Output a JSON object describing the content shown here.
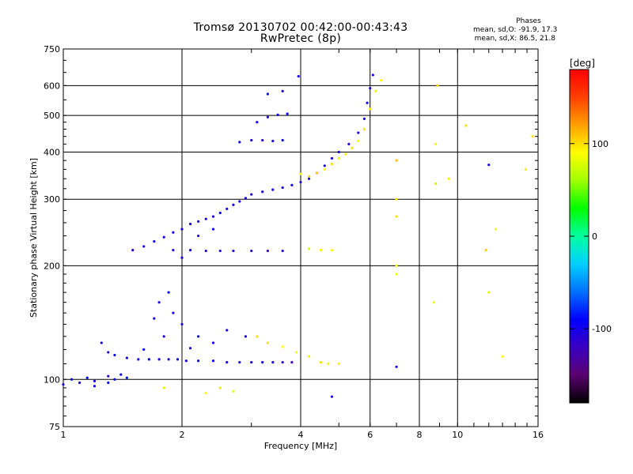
{
  "title": "Tromsø 20130702 00:42:00-00:43:43",
  "subtitle": "RwPretec (8p)",
  "stats": {
    "header": "Phases",
    "line_o": "mean, sd,O: -91.9, 17.3",
    "line_x": "mean, sd,X:  86.5, 21.8"
  },
  "colorbar": {
    "label": "[deg]",
    "ticks": [
      {
        "value": 100,
        "label": "100"
      },
      {
        "value": 0,
        "label": "0"
      },
      {
        "value": -100,
        "label": "-100"
      }
    ],
    "range": [
      -180,
      180
    ],
    "colors": [
      "#000000",
      "#5a0070",
      "#3a00c0",
      "#0000ff",
      "#0070ff",
      "#00d0ff",
      "#00ffa0",
      "#00ff00",
      "#a0ff00",
      "#ffff00",
      "#ffa000",
      "#ff4000",
      "#ff0000"
    ]
  },
  "chart_data": {
    "type": "scatter",
    "title": "Tromsø 20130702 00:42:00-00:43:43",
    "subtitle": "RwPretec (8p)",
    "xlabel": "Frequency [MHz]",
    "ylabel": "Stationary phase Virtual Height [km]",
    "x_scale": "log",
    "y_scale": "log",
    "xlim": [
      1,
      16
    ],
    "ylim": [
      75,
      750
    ],
    "x_ticks": [
      1,
      2,
      4,
      6,
      8,
      10,
      16
    ],
    "y_ticks": [
      75,
      100,
      200,
      300,
      400,
      500,
      600,
      750
    ],
    "x_grid": [
      2,
      4,
      6,
      8,
      10
    ],
    "y_grid": [
      100,
      200,
      300,
      400,
      500,
      600
    ],
    "color_metric": "phase [deg]",
    "series": [
      {
        "name": "Phases O",
        "points": [
          [
            1.0,
            97,
            -100
          ],
          [
            1.05,
            100,
            -95
          ],
          [
            1.1,
            98,
            -105
          ],
          [
            1.15,
            101,
            -90
          ],
          [
            1.2,
            99,
            -100
          ],
          [
            1.3,
            102,
            -110
          ],
          [
            1.35,
            100,
            -95
          ],
          [
            1.4,
            103,
            -100
          ],
          [
            1.45,
            101,
            -85
          ],
          [
            1.25,
            125,
            -100
          ],
          [
            1.3,
            118,
            -110
          ],
          [
            1.35,
            116,
            -95
          ],
          [
            1.45,
            114,
            -100
          ],
          [
            1.55,
            113,
            -105
          ],
          [
            1.65,
            113,
            -95
          ],
          [
            1.75,
            113,
            -100
          ],
          [
            1.85,
            113,
            -110
          ],
          [
            1.95,
            113,
            -100
          ],
          [
            2.05,
            112,
            -105
          ],
          [
            2.2,
            112,
            -100
          ],
          [
            2.4,
            112,
            -95
          ],
          [
            2.6,
            111,
            -100
          ],
          [
            2.8,
            111,
            -110
          ],
          [
            3.0,
            111,
            -105
          ],
          [
            3.2,
            111,
            -95
          ],
          [
            3.4,
            111,
            -100
          ],
          [
            3.6,
            111,
            -110
          ],
          [
            3.8,
            111,
            -120
          ],
          [
            1.5,
            220,
            -110
          ],
          [
            1.6,
            225,
            -100
          ],
          [
            1.7,
            232,
            -95
          ],
          [
            1.8,
            238,
            -100
          ],
          [
            1.9,
            245,
            -105
          ],
          [
            2.0,
            250,
            -95
          ],
          [
            2.1,
            258,
            -100
          ],
          [
            2.2,
            262,
            -110
          ],
          [
            2.3,
            266,
            -100
          ],
          [
            2.4,
            270,
            -105
          ],
          [
            2.5,
            276,
            -100
          ],
          [
            2.6,
            283,
            -95
          ],
          [
            2.7,
            290,
            -100
          ],
          [
            2.8,
            296,
            -105
          ],
          [
            2.9,
            302,
            -100
          ],
          [
            3.0,
            309,
            -110
          ],
          [
            3.2,
            314,
            -100
          ],
          [
            3.4,
            318,
            -95
          ],
          [
            3.6,
            322,
            -105
          ],
          [
            3.8,
            327,
            -100
          ],
          [
            4.0,
            333,
            -110
          ],
          [
            4.2,
            340,
            -100
          ],
          [
            4.4,
            352,
            -95
          ],
          [
            4.6,
            368,
            -100
          ],
          [
            4.8,
            385,
            -105
          ],
          [
            5.0,
            400,
            -100
          ],
          [
            5.3,
            420,
            -110
          ],
          [
            5.6,
            450,
            -100
          ],
          [
            5.8,
            490,
            -95
          ],
          [
            5.9,
            540,
            -100
          ],
          [
            6.0,
            590,
            -105
          ],
          [
            6.1,
            640,
            -100
          ],
          [
            1.9,
            220,
            -110
          ],
          [
            2.1,
            220,
            -100
          ],
          [
            2.3,
            219,
            -110
          ],
          [
            2.5,
            219,
            -105
          ],
          [
            2.7,
            219,
            -100
          ],
          [
            3.0,
            219,
            -110
          ],
          [
            3.3,
            219,
            -120
          ],
          [
            3.6,
            219,
            -110
          ],
          [
            2.8,
            425,
            -100
          ],
          [
            3.0,
            430,
            -105
          ],
          [
            3.2,
            430,
            -110
          ],
          [
            3.4,
            428,
            -100
          ],
          [
            3.6,
            430,
            -95
          ],
          [
            3.1,
            480,
            -100
          ],
          [
            3.3,
            495,
            -110
          ],
          [
            3.5,
            502,
            -100
          ],
          [
            3.7,
            505,
            -95
          ],
          [
            3.3,
            570,
            -100
          ],
          [
            3.6,
            580,
            -110
          ],
          [
            3.95,
            635,
            -100
          ],
          [
            1.75,
            160,
            -100
          ],
          [
            1.85,
            170,
            -95
          ],
          [
            1.9,
            150,
            -105
          ],
          [
            2.0,
            140,
            -100
          ],
          [
            1.8,
            130,
            -110
          ],
          [
            1.7,
            145,
            -100
          ],
          [
            2.2,
            130,
            -95
          ],
          [
            2.4,
            125,
            -100
          ],
          [
            2.6,
            135,
            -105
          ],
          [
            2.9,
            130,
            -100
          ],
          [
            1.6,
            120,
            -90
          ],
          [
            2.1,
            121,
            -110
          ],
          [
            1.2,
            96,
            -100
          ],
          [
            1.3,
            98,
            -95
          ],
          [
            2.0,
            210,
            -100
          ],
          [
            2.2,
            240,
            -110
          ],
          [
            2.4,
            250,
            -95
          ],
          [
            4.8,
            90,
            -110
          ],
          [
            12.0,
            370,
            -100
          ],
          [
            7.0,
            108,
            -95
          ]
        ]
      },
      {
        "name": "Phases X",
        "points": [
          [
            4.0,
            350,
            95
          ],
          [
            4.2,
            345,
            100
          ],
          [
            4.4,
            352,
            105
          ],
          [
            4.6,
            360,
            90
          ],
          [
            4.8,
            372,
            100
          ],
          [
            5.0,
            385,
            85
          ],
          [
            5.2,
            395,
            95
          ],
          [
            5.4,
            410,
            100
          ],
          [
            5.6,
            428,
            90
          ],
          [
            5.8,
            460,
            100
          ],
          [
            6.0,
            520,
            95
          ],
          [
            6.2,
            580,
            85
          ],
          [
            6.4,
            620,
            90
          ],
          [
            4.2,
            222,
            80
          ],
          [
            4.5,
            220,
            85
          ],
          [
            4.8,
            220,
            90
          ],
          [
            5.0,
            110,
            95
          ],
          [
            4.5,
            111,
            100
          ],
          [
            4.7,
            110,
            85
          ],
          [
            3.3,
            125,
            100
          ],
          [
            3.6,
            122,
            90
          ],
          [
            3.9,
            118,
            85
          ],
          [
            4.2,
            115,
            95
          ],
          [
            3.1,
            130,
            100
          ],
          [
            2.3,
            92,
            90
          ],
          [
            2.5,
            95,
            100
          ],
          [
            2.7,
            93,
            85
          ],
          [
            1.8,
            95,
            80
          ],
          [
            7.0,
            380,
            110
          ],
          [
            7.0,
            300,
            95
          ],
          [
            7.0,
            270,
            100
          ],
          [
            7.0,
            200,
            90
          ],
          [
            7.0,
            190,
            85
          ],
          [
            8.9,
            600,
            100
          ],
          [
            8.8,
            420,
            90
          ],
          [
            9.5,
            340,
            95
          ],
          [
            8.8,
            330,
            100
          ],
          [
            8.7,
            160,
            85
          ],
          [
            10.5,
            470,
            100
          ],
          [
            12.5,
            250,
            85
          ],
          [
            13.0,
            115,
            90
          ],
          [
            14.9,
            360,
            95
          ],
          [
            15.5,
            440,
            100
          ],
          [
            11.8,
            220,
            105
          ],
          [
            12.0,
            170,
            80
          ]
        ]
      }
    ]
  }
}
